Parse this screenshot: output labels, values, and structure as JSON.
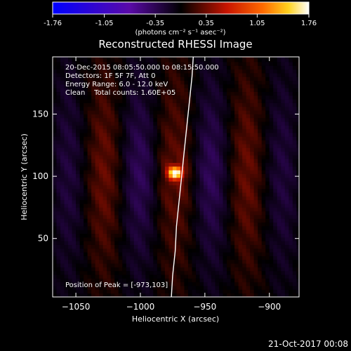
{
  "colorbar": {
    "ticks": [
      "-1.76",
      "-1.05",
      "-0.35",
      "0.35",
      "1.05",
      "1.76"
    ],
    "units": "(photons cm⁻² s⁻¹ asec⁻²)",
    "range": [
      -1.76,
      1.76
    ]
  },
  "chart_data": {
    "type": "heatmap",
    "title": "Reconstructed RHESSI Image",
    "xlabel": "Heliocentric X (arcsec)",
    "ylabel": "Heliocentric Y (arcsec)",
    "xlim": [
      -1068,
      -877
    ],
    "ylim": [
      3,
      196
    ],
    "x_ticks": [
      -1050,
      -1000,
      -950,
      -900
    ],
    "y_ticks": [
      50,
      100,
      150
    ],
    "annotations": [
      "20-Dec-2015 08:05:50.000 to 08:15:50.000",
      "Detectors: 1F 5F 7F, Att 0",
      "Energy Range: 6.0 - 12.0 keV",
      "Clean    Total counts: 1.60E+05"
    ],
    "peak_label": "Position of Peak = [-973,103]",
    "peak": {
      "x": -973,
      "y": 103
    },
    "peak_value": 1.76,
    "limb_curve": [
      [
        -976,
        3
      ],
      [
        -975,
        20
      ],
      [
        -973,
        40
      ],
      [
        -972,
        60
      ],
      [
        -970,
        80
      ],
      [
        -968,
        100
      ],
      [
        -966,
        120
      ],
      [
        -964,
        140
      ],
      [
        -962,
        160
      ],
      [
        -960,
        180
      ],
      [
        -959,
        196
      ]
    ]
  },
  "timestamp": "21-Oct-2017 00:08"
}
